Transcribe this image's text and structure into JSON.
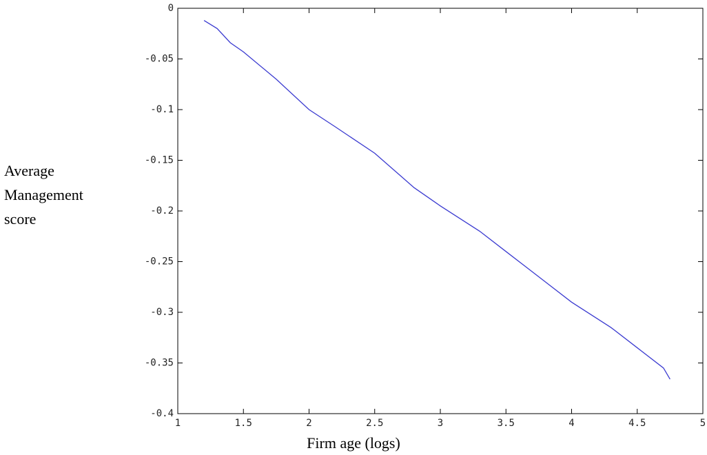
{
  "chart_data": {
    "type": "line",
    "ylabel": [
      "Average",
      "Management",
      "score"
    ],
    "xlabel": "Firm age (logs)",
    "x": [
      1.2,
      1.3,
      1.4,
      1.5,
      1.75,
      2.0,
      2.2,
      2.5,
      2.8,
      3.0,
      3.3,
      3.5,
      3.8,
      4.0,
      4.3,
      4.5,
      4.7,
      4.75
    ],
    "series": [
      {
        "color": "#3a3ad0",
        "values": [
          -0.012,
          -0.02,
          -0.034,
          -0.043,
          -0.07,
          -0.1,
          -0.117,
          -0.143,
          -0.177,
          -0.195,
          -0.22,
          -0.24,
          -0.27,
          -0.29,
          -0.315,
          -0.335,
          -0.355,
          -0.366
        ]
      }
    ],
    "xlim": [
      1,
      5
    ],
    "xticks": [
      1,
      1.5,
      2,
      2.5,
      3,
      3.5,
      4,
      4.5,
      5
    ],
    "ylim": [
      -0.4,
      0
    ],
    "yticks": [
      -0.4,
      -0.35,
      -0.3,
      -0.25,
      -0.2,
      -0.15,
      -0.1,
      -0.05,
      0
    ],
    "grid": false
  }
}
